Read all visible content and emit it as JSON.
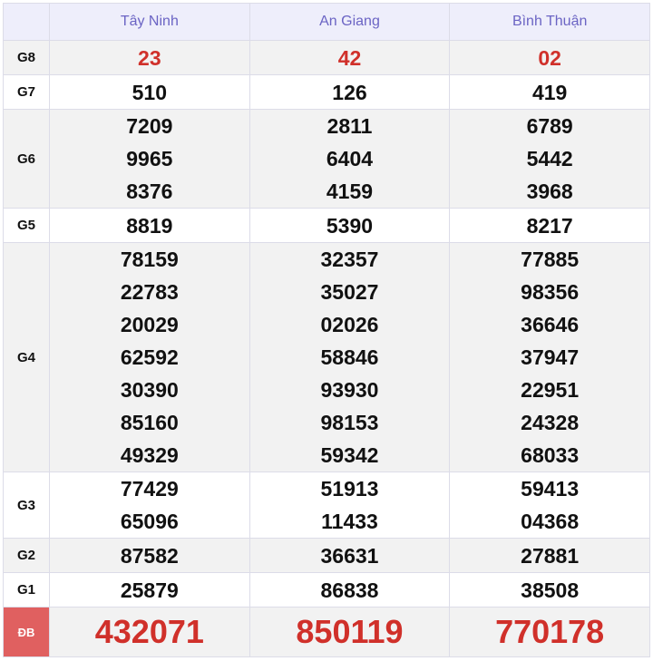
{
  "provinces": [
    "Tây Ninh",
    "An Giang",
    "Bình Thuận"
  ],
  "rows": [
    {
      "label": "G8",
      "values": [
        [
          "23"
        ],
        [
          "42"
        ],
        [
          "02"
        ]
      ],
      "highlight": true
    },
    {
      "label": "G7",
      "values": [
        [
          "510"
        ],
        [
          "126"
        ],
        [
          "419"
        ]
      ]
    },
    {
      "label": "G6",
      "values": [
        [
          "7209",
          "9965",
          "8376"
        ],
        [
          "2811",
          "6404",
          "4159"
        ],
        [
          "6789",
          "5442",
          "3968"
        ]
      ]
    },
    {
      "label": "G5",
      "values": [
        [
          "8819"
        ],
        [
          "5390"
        ],
        [
          "8217"
        ]
      ]
    },
    {
      "label": "G4",
      "values": [
        [
          "78159",
          "22783",
          "20029",
          "62592",
          "30390",
          "85160",
          "49329"
        ],
        [
          "32357",
          "35027",
          "02026",
          "58846",
          "93930",
          "98153",
          "59342"
        ],
        [
          "77885",
          "98356",
          "36646",
          "37947",
          "22951",
          "24328",
          "68033"
        ]
      ]
    },
    {
      "label": "G3",
      "values": [
        [
          "77429",
          "65096"
        ],
        [
          "51913",
          "11433"
        ],
        [
          "59413",
          "04368"
        ]
      ]
    },
    {
      "label": "G2",
      "values": [
        [
          "87582"
        ],
        [
          "36631"
        ],
        [
          "27881"
        ]
      ]
    },
    {
      "label": "G1",
      "values": [
        [
          "25879"
        ],
        [
          "86838"
        ],
        [
          "38508"
        ]
      ]
    },
    {
      "label": "ĐB",
      "values": [
        [
          "432071"
        ],
        [
          "850119"
        ],
        [
          "770178"
        ]
      ],
      "special": true
    }
  ],
  "colors": {
    "accent_red": "#d0302a",
    "header_text": "#6b64c4"
  }
}
